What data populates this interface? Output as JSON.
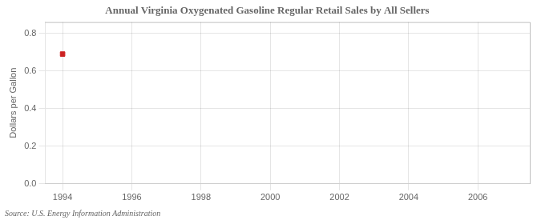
{
  "chart_data": {
    "type": "scatter",
    "title": "Annual Virginia Oxygenated Gasoline Regular Retail Sales by All Sellers",
    "y_label": "Dollars per Gallon",
    "annotations": [
      "Source: U.S. Energy Information Administration"
    ],
    "x": [
      1994.0
    ],
    "values": [
      0.69
    ],
    "color": "#cc2222",
    "marker": "square",
    "xlim": [
      1993.5,
      2007.5
    ],
    "xticks": [
      1994,
      1996,
      1998,
      2000,
      2002,
      2004,
      2006
    ],
    "ylim": [
      0.0,
      0.86
    ],
    "yticks": [
      {
        "value": 0.0,
        "label": "0.0"
      },
      0.2,
      0.4,
      0.6,
      0.8
    ],
    "grid": true
  }
}
